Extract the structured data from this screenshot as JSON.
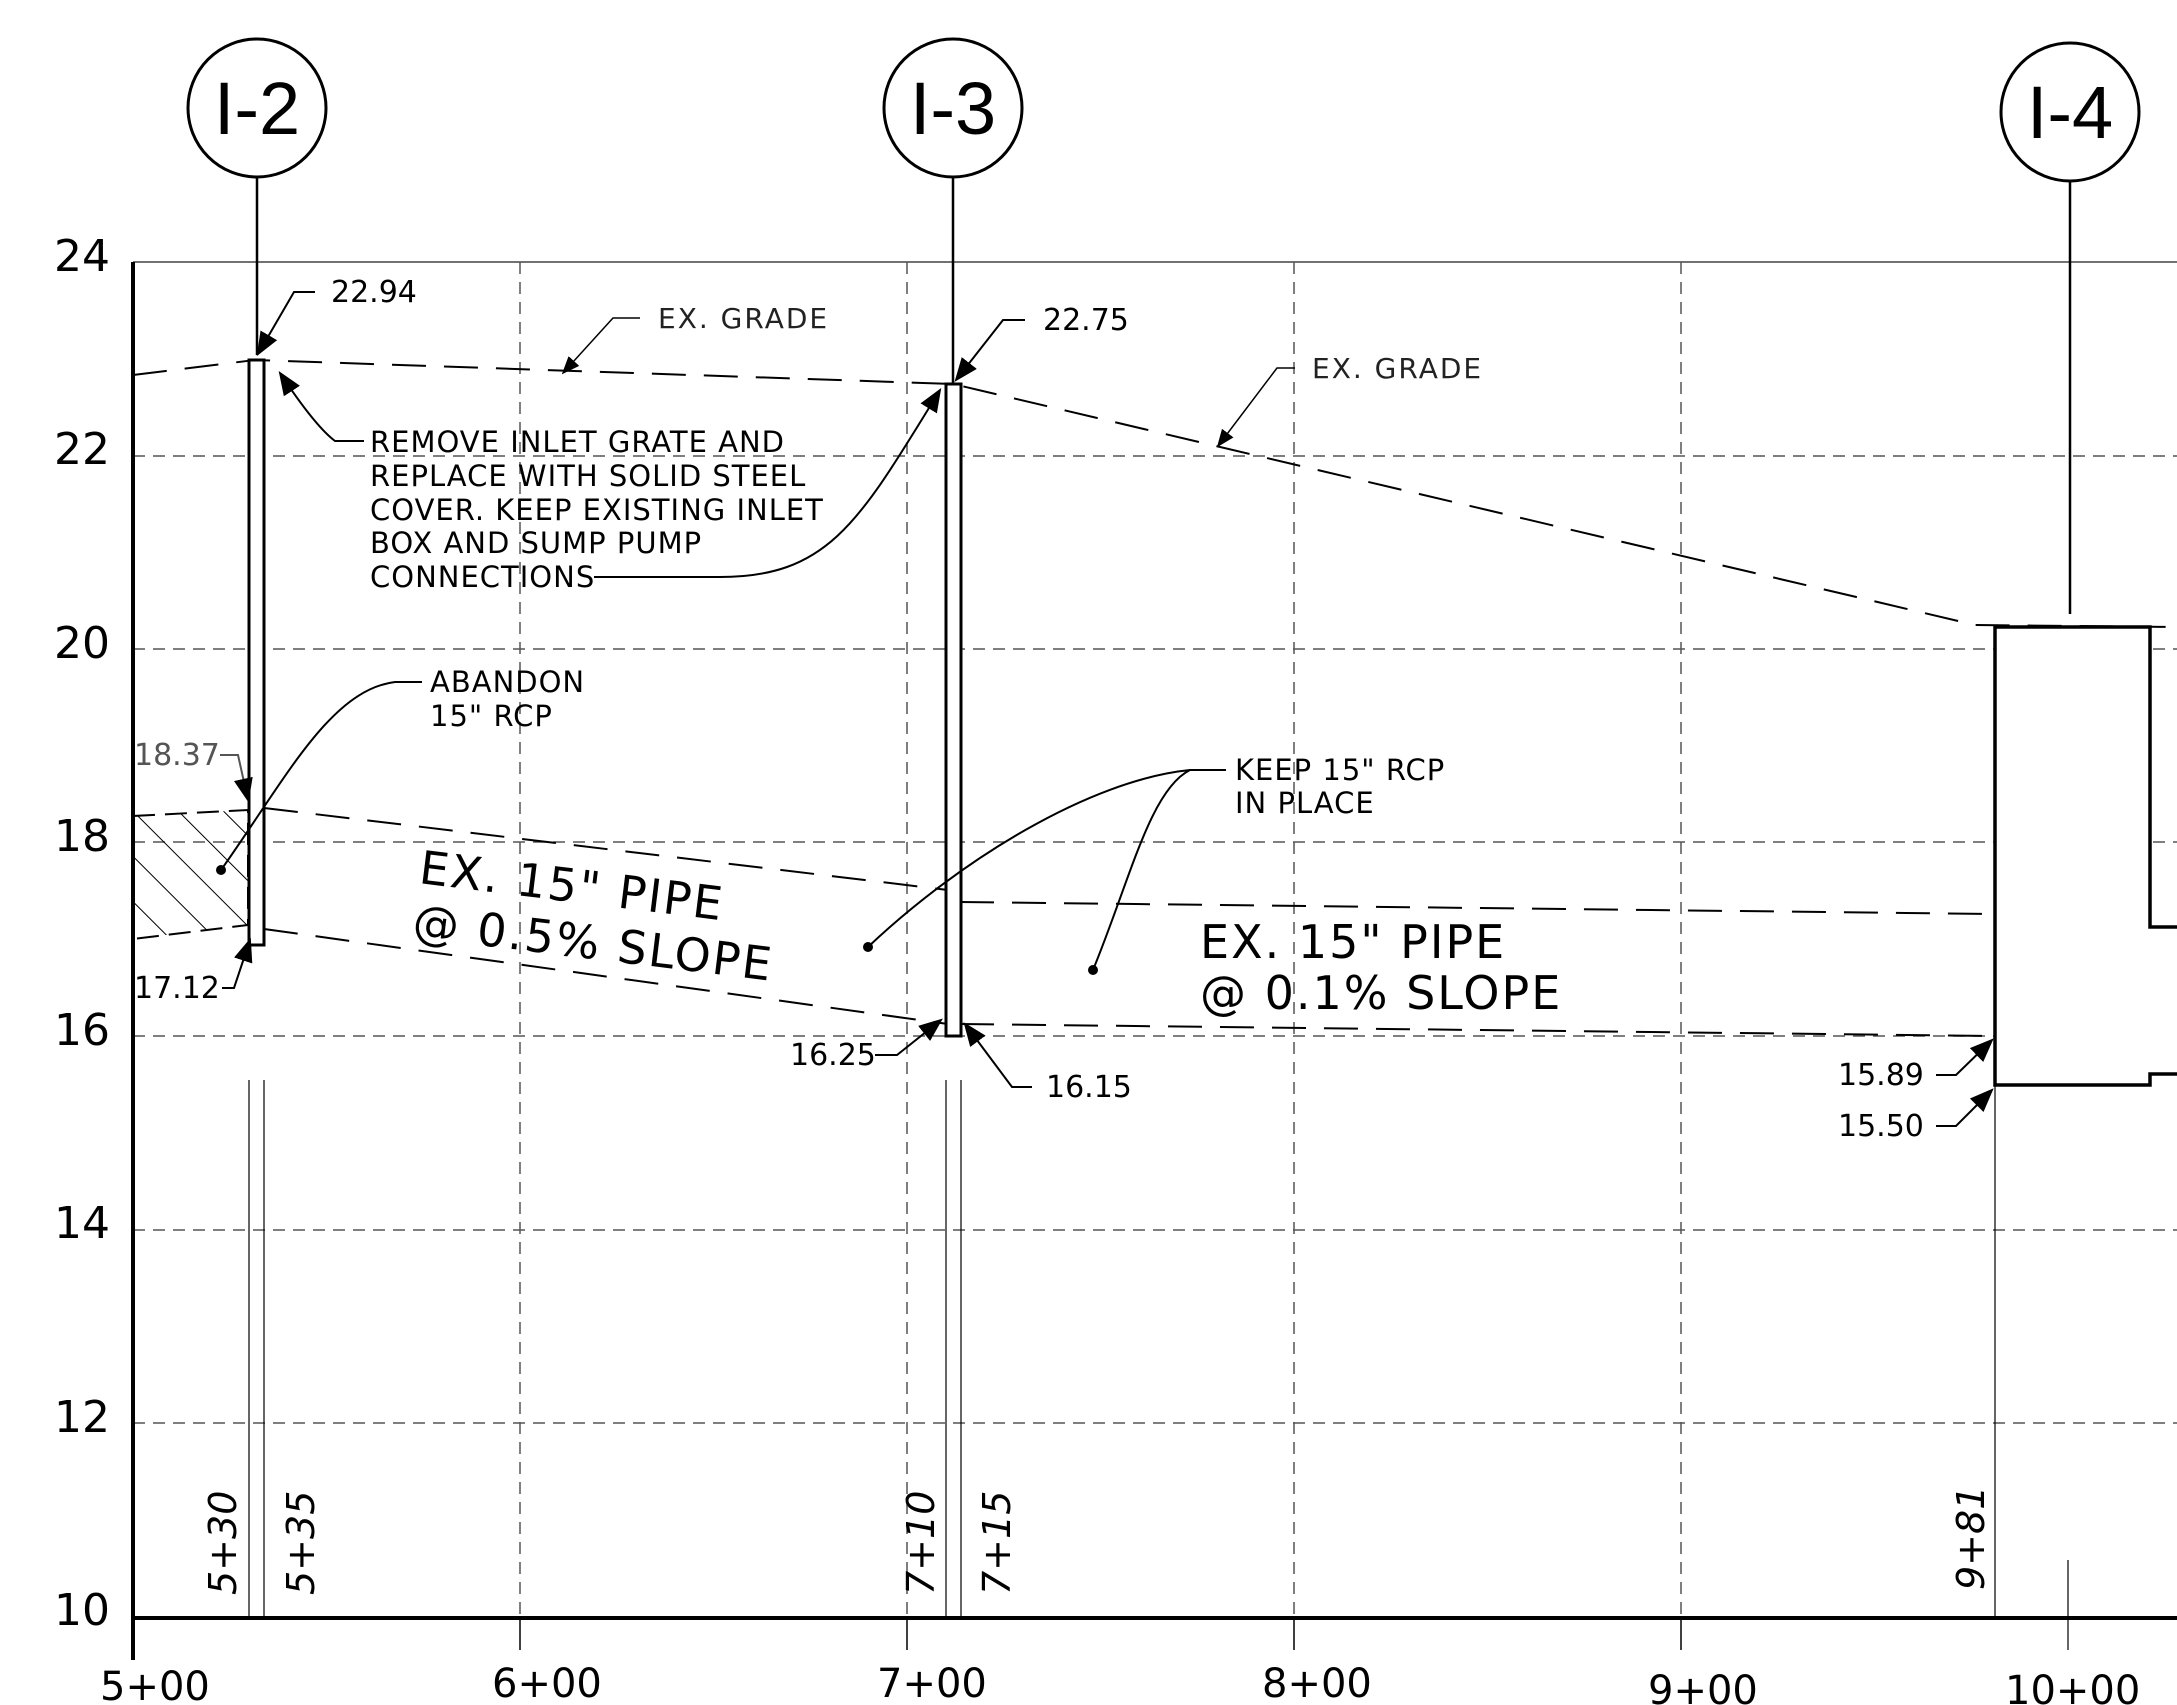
{
  "axes": {
    "elevations": [
      "24",
      "22",
      "20",
      "18",
      "16",
      "14",
      "12",
      "10"
    ],
    "stations": [
      "5+00",
      "6+00",
      "7+00",
      "8+00",
      "9+00",
      "10+00"
    ]
  },
  "structures": [
    {
      "label": "I-2"
    },
    {
      "label": "I-3"
    },
    {
      "label": "I-4"
    }
  ],
  "station_marks": [
    "5+30",
    "5+35",
    "7+10",
    "7+15",
    "9+81"
  ],
  "elevations_called_out": {
    "i2_rim": "22.94",
    "i2_pipe_top": "18.37",
    "i2_invert": "17.12",
    "i3_rim": "22.75",
    "i3_invert_in": "16.25",
    "i3_invert_out": "16.15",
    "i4_invert_in": "15.89",
    "i4_bottom": "15.50"
  },
  "notes": {
    "ex_grade_1": "EX. GRADE",
    "ex_grade_2": "EX. GRADE",
    "remove_inlet": [
      "REMOVE INLET GRATE AND",
      "REPLACE WITH SOLID STEEL",
      "COVER. KEEP EXISTING INLET",
      "BOX AND SUMP PUMP",
      "CONNECTIONS"
    ],
    "abandon": [
      "ABANDON",
      "15\" RCP"
    ],
    "keep": [
      "KEEP 15\" RCP",
      "IN PLACE"
    ],
    "pipe1": [
      "EX. 15\" PIPE",
      "@ 0.5% SLOPE"
    ],
    "pipe2": [
      "EX. 15\" PIPE",
      "@ 0.1% SLOPE"
    ]
  }
}
